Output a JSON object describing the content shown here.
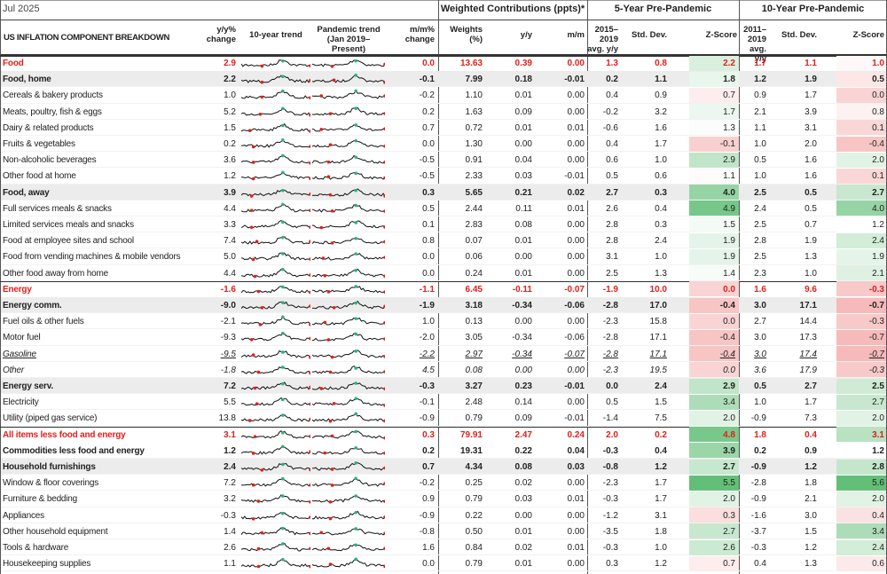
{
  "header": {
    "date": "Jul 2025",
    "groups": [
      "Weighted Contributions (ppts)*",
      "5-Year Pre-Pandemic",
      "10-Year Pre-Pandemic"
    ],
    "columns": [
      "US INFLATION COMPONENT BREAKDOWN",
      "y/y%\nchange",
      "10-year trend",
      "Pandemic trend\n(Jan 2019–Present)",
      "m/m%\nchange",
      "Weights\n(%)",
      "y/y",
      "m/m",
      "2015–2019\navg. y/y",
      "Std. Dev.",
      "Z-Score",
      "2011–2019\navg. y/y",
      "Std. Dev.",
      "Z-Score"
    ]
  },
  "table": {
    "rows": [
      {
        "name": "Food",
        "style": "total",
        "values": [
          "2.9",
          "0.0",
          "13.63",
          "0.39",
          "0.00",
          "1.3",
          "0.8",
          "2.2",
          "1.7",
          "1.1",
          "1.0"
        ]
      },
      {
        "name": "Food, home",
        "style": "sub",
        "values": [
          "2.2",
          "-0.1",
          "7.99",
          "0.18",
          "-0.01",
          "0.2",
          "1.1",
          "1.8",
          "1.2",
          "1.9",
          "0.5"
        ]
      },
      {
        "name": "Cereals & bakery products",
        "style": "item",
        "values": [
          "1.0",
          "-0.2",
          "1.10",
          "0.01",
          "0.00",
          "0.4",
          "0.9",
          "0.7",
          "0.9",
          "1.7",
          "0.0"
        ]
      },
      {
        "name": "Meats, poultry, fish & eggs",
        "style": "item",
        "values": [
          "5.2",
          "0.2",
          "1.63",
          "0.09",
          "0.00",
          "-0.2",
          "3.2",
          "1.7",
          "2.1",
          "3.9",
          "0.8"
        ]
      },
      {
        "name": "Dairy & related products",
        "style": "item",
        "values": [
          "1.5",
          "0.7",
          "0.72",
          "0.01",
          "0.01",
          "-0.6",
          "1.6",
          "1.3",
          "1.1",
          "3.1",
          "0.1"
        ]
      },
      {
        "name": "Fruits & vegetables",
        "style": "item",
        "values": [
          "0.2",
          "0.0",
          "1.30",
          "0.00",
          "0.00",
          "0.4",
          "1.7",
          "-0.1",
          "1.0",
          "2.0",
          "-0.4"
        ]
      },
      {
        "name": "Non-alcoholic beverages",
        "style": "item",
        "values": [
          "3.6",
          "-0.5",
          "0.91",
          "0.04",
          "0.00",
          "0.6",
          "1.0",
          "2.9",
          "0.5",
          "1.6",
          "2.0"
        ]
      },
      {
        "name": "Other food at home",
        "style": "item",
        "values": [
          "1.2",
          "-0.5",
          "2.33",
          "0.03",
          "-0.01",
          "0.5",
          "0.6",
          "1.1",
          "1.0",
          "1.6",
          "0.1"
        ]
      },
      {
        "name": "Food, away",
        "style": "sub",
        "values": [
          "3.9",
          "0.3",
          "5.65",
          "0.21",
          "0.02",
          "2.7",
          "0.3",
          "4.0",
          "2.5",
          "0.5",
          "2.7"
        ]
      },
      {
        "name": "Full services meals & snacks",
        "style": "item",
        "values": [
          "4.4",
          "0.5",
          "2.44",
          "0.11",
          "0.01",
          "2.6",
          "0.4",
          "4.9",
          "2.4",
          "0.5",
          "4.0"
        ]
      },
      {
        "name": "Limited services meals and snacks",
        "style": "item",
        "values": [
          "3.3",
          "0.1",
          "2.83",
          "0.08",
          "0.00",
          "2.8",
          "0.3",
          "1.5",
          "2.5",
          "0.7",
          "1.2"
        ]
      },
      {
        "name": "Food at employee sites and school",
        "style": "item",
        "values": [
          "7.4",
          "0.8",
          "0.07",
          "0.01",
          "0.00",
          "2.8",
          "2.4",
          "1.9",
          "2.8",
          "1.9",
          "2.4"
        ]
      },
      {
        "name": "Food from vending machines & mobile vendors",
        "style": "item",
        "values": [
          "5.0",
          "0.0",
          "0.06",
          "0.00",
          "0.00",
          "3.1",
          "1.0",
          "1.9",
          "2.5",
          "1.3",
          "1.9"
        ]
      },
      {
        "name": "Other food away from home",
        "style": "item",
        "values": [
          "4.4",
          "0.0",
          "0.24",
          "0.01",
          "0.00",
          "2.5",
          "1.3",
          "1.4",
          "2.3",
          "1.0",
          "2.1"
        ]
      },
      {
        "name": "Energy",
        "style": "total",
        "values": [
          "-1.6",
          "-1.1",
          "6.45",
          "-0.11",
          "-0.07",
          "-1.9",
          "10.0",
          "0.0",
          "1.6",
          "9.6",
          "-0.3"
        ]
      },
      {
        "name": "Energy comm.",
        "style": "sub",
        "values": [
          "-9.0",
          "-1.9",
          "3.18",
          "-0.34",
          "-0.06",
          "-2.8",
          "17.0",
          "-0.4",
          "3.0",
          "17.1",
          "-0.7"
        ]
      },
      {
        "name": "Fuel oils & other fuels",
        "style": "item",
        "values": [
          "-2.1",
          "1.0",
          "0.13",
          "0.00",
          "0.00",
          "-2.3",
          "15.8",
          "0.0",
          "2.7",
          "14.4",
          "-0.3"
        ]
      },
      {
        "name": "Motor fuel",
        "style": "item",
        "values": [
          "-9.3",
          "-2.0",
          "3.05",
          "-0.34",
          "-0.06",
          "-2.8",
          "17.1",
          "-0.4",
          "3.0",
          "17.3",
          "-0.7"
        ]
      },
      {
        "name": "Gasoline",
        "style": "underline",
        "values": [
          "-9.5",
          "-2.2",
          "2.97",
          "-0.34",
          "-0.07",
          "-2.8",
          "17.1",
          "-0.4",
          "3.0",
          "17.4",
          "-0.7"
        ]
      },
      {
        "name": "Other",
        "style": "italic",
        "values": [
          "-1.8",
          "4.5",
          "0.08",
          "0.00",
          "0.00",
          "-2.3",
          "19.5",
          "0.0",
          "3.6",
          "17.9",
          "-0.3"
        ]
      },
      {
        "name": "Energy serv.",
        "style": "sub",
        "values": [
          "7.2",
          "-0.3",
          "3.27",
          "0.23",
          "-0.01",
          "0.0",
          "2.4",
          "2.9",
          "0.5",
          "2.7",
          "2.5"
        ]
      },
      {
        "name": "Electricity",
        "style": "item",
        "values": [
          "5.5",
          "-0.1",
          "2.48",
          "0.14",
          "0.00",
          "0.5",
          "1.5",
          "3.4",
          "1.0",
          "1.7",
          "2.7"
        ]
      },
      {
        "name": "Utility (piped gas service)",
        "style": "item",
        "values": [
          "13.8",
          "-0.9",
          "0.79",
          "0.09",
          "-0.01",
          "-1.4",
          "7.5",
          "2.0",
          "-0.9",
          "7.3",
          "2.0"
        ]
      },
      {
        "name": "All items less food and energy",
        "style": "total",
        "values": [
          "3.1",
          "0.3",
          "79.91",
          "2.47",
          "0.24",
          "2.0",
          "0.2",
          "4.8",
          "1.8",
          "0.4",
          "3.1"
        ]
      },
      {
        "name": "Commodities less food and energy",
        "style": "bold",
        "values": [
          "1.2",
          "0.2",
          "19.31",
          "0.22",
          "0.04",
          "-0.3",
          "0.4",
          "3.9",
          "0.2",
          "0.9",
          "1.2"
        ]
      },
      {
        "name": "Household furnishings",
        "style": "sub",
        "values": [
          "2.4",
          "0.7",
          "4.34",
          "0.08",
          "0.03",
          "-0.8",
          "1.2",
          "2.7",
          "-0.9",
          "1.2",
          "2.8"
        ]
      },
      {
        "name": "Window & floor coverings",
        "style": "item",
        "values": [
          "7.2",
          "-0.2",
          "0.25",
          "0.02",
          "0.00",
          "-2.3",
          "1.7",
          "5.5",
          "-2.8",
          "1.8",
          "5.6"
        ]
      },
      {
        "name": "Furniture & bedding",
        "style": "item",
        "values": [
          "3.2",
          "0.9",
          "0.79",
          "0.03",
          "0.01",
          "-0.3",
          "1.7",
          "2.0",
          "-0.9",
          "2.1",
          "2.0"
        ]
      },
      {
        "name": "Appliances",
        "style": "item",
        "values": [
          "-0.3",
          "-0.9",
          "0.22",
          "0.00",
          "0.00",
          "-1.2",
          "3.1",
          "0.3",
          "-1.6",
          "3.0",
          "0.4"
        ]
      },
      {
        "name": "Other household equipment",
        "style": "item",
        "values": [
          "1.4",
          "-0.8",
          "0.50",
          "0.01",
          "0.00",
          "-3.5",
          "1.8",
          "2.7",
          "-3.7",
          "1.5",
          "3.4"
        ]
      },
      {
        "name": "Tools & hardware",
        "style": "item",
        "values": [
          "2.6",
          "1.6",
          "0.84",
          "0.02",
          "0.01",
          "-0.3",
          "1.0",
          "2.6",
          "-0.3",
          "1.2",
          "2.4"
        ]
      },
      {
        "name": "Housekeeping supplies",
        "style": "item",
        "values": [
          "1.1",
          "0.0",
          "0.79",
          "0.01",
          "0.00",
          "0.3",
          "1.2",
          "0.7",
          "0.4",
          "1.3",
          "0.6"
        ]
      }
    ]
  }
}
